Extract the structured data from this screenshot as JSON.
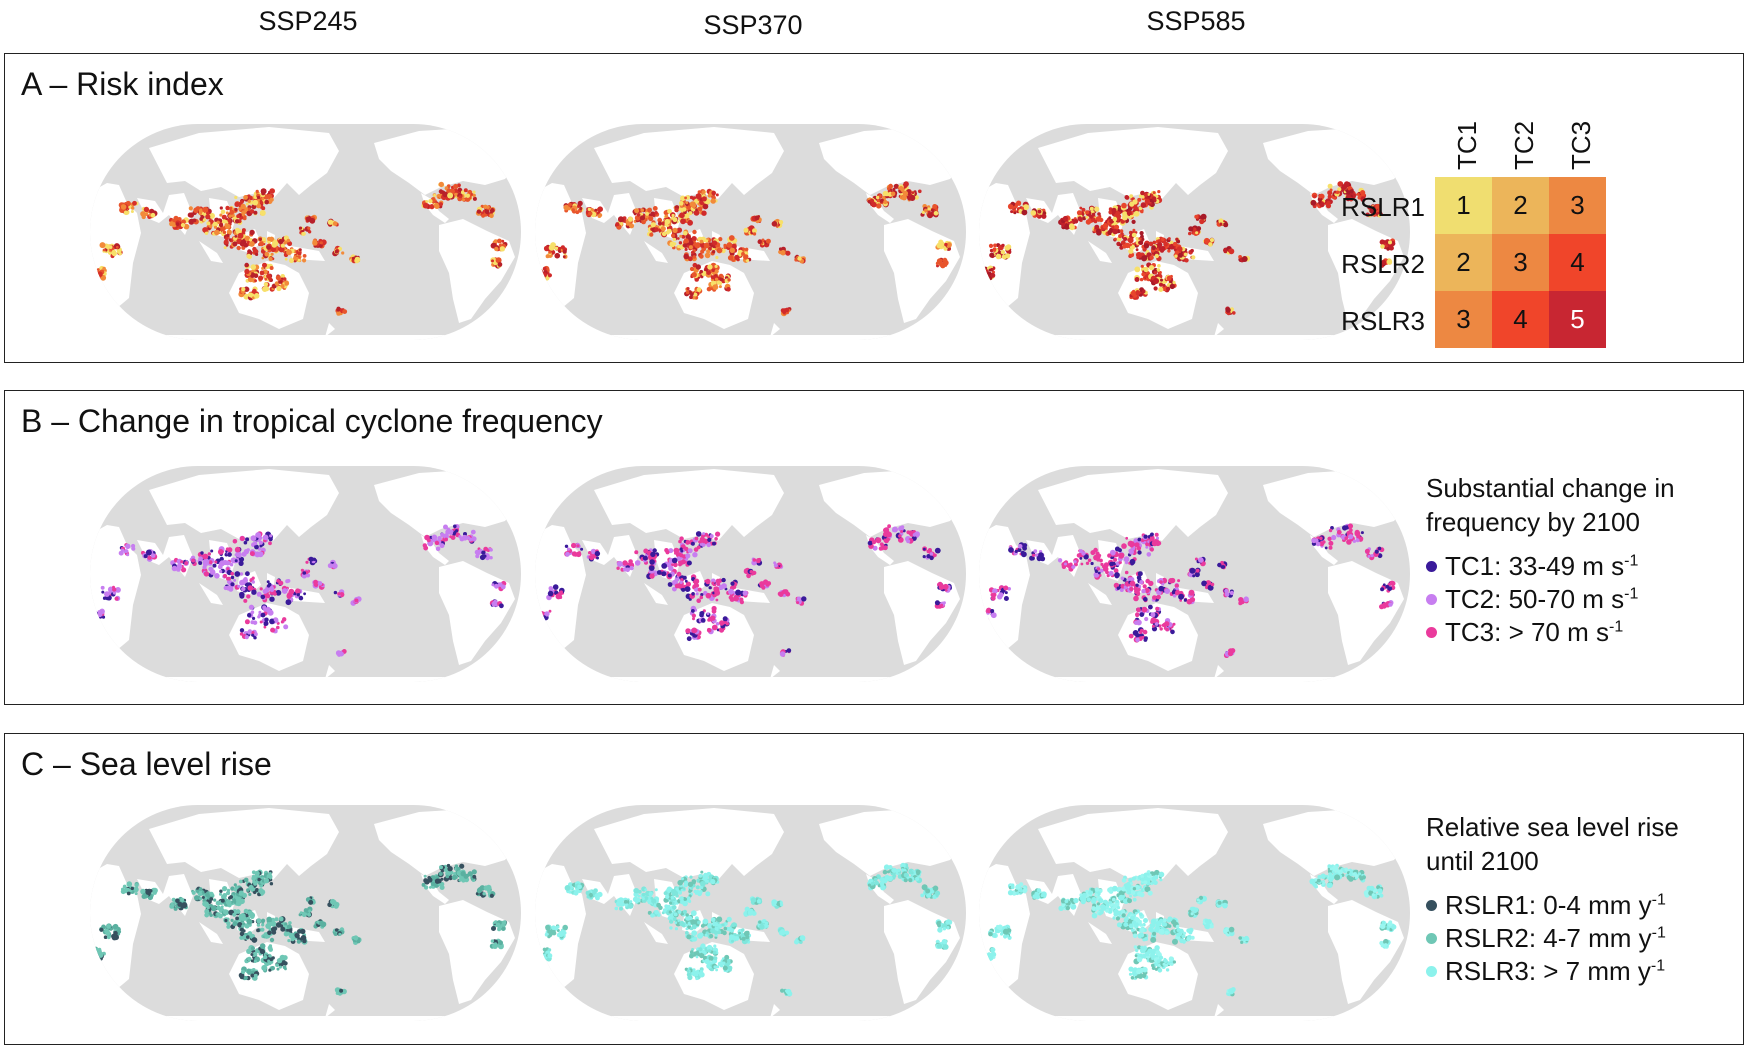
{
  "columns": [
    "SSP245",
    "SSP370",
    "SSP585"
  ],
  "panels": {
    "a": {
      "title": "A – Risk index"
    },
    "b": {
      "title": "B – Change in tropical cyclone frequency"
    },
    "c": {
      "title": "C – Sea level rise"
    }
  },
  "risk_matrix": {
    "col_labels": [
      "TC1",
      "TC2",
      "TC3"
    ],
    "row_labels": [
      "RSLR1",
      "RSLR2",
      "RSLR3"
    ],
    "values": [
      [
        "1",
        "2",
        "3"
      ],
      [
        "2",
        "3",
        "4"
      ],
      [
        "3",
        "4",
        "5"
      ]
    ],
    "colors": [
      [
        "#f0de70",
        "#ecb55a",
        "#ed8842"
      ],
      [
        "#ecb55a",
        "#ed8842",
        "#f0452a"
      ],
      [
        "#ed8842",
        "#f0452a",
        "#c82632"
      ]
    ]
  },
  "tc_legend": {
    "title_line1": "Substantial change in",
    "title_line2": "frequency by 2100",
    "items": [
      {
        "label": "TC1: 33-49 m s",
        "sup": "-1",
        "color": "#3a1a9a"
      },
      {
        "label": "TC2: 50-70 m s",
        "sup": "-1",
        "color": "#c77ef0"
      },
      {
        "label": "TC3: > 70 m s",
        "sup": "-1",
        "color": "#ea3a9c"
      }
    ]
  },
  "slr_legend": {
    "title_line1": "Relative sea level rise",
    "title_line2": "until 2100",
    "items": [
      {
        "label": "RSLR1: 0-4 mm y",
        "sup": "-1",
        "color": "#36505e"
      },
      {
        "label": "RSLR2: 4-7 mm y",
        "sup": "-1",
        "color": "#6fc7b5"
      },
      {
        "label": "RSLR3: > 7 mm y",
        "sup": "-1",
        "color": "#8cf2ec"
      }
    ]
  },
  "colors": {
    "ocean": "#dcdcdc",
    "land": "#ffffff"
  }
}
